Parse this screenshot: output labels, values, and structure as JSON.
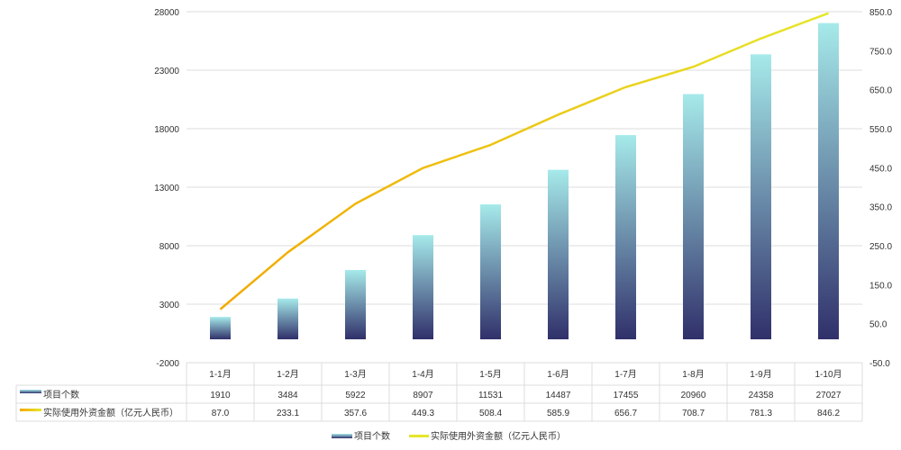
{
  "chart_data": {
    "type": "bar+line",
    "categories": [
      "1-1月",
      "1-2月",
      "1-3月",
      "1-4月",
      "1-5月",
      "1-6月",
      "1-7月",
      "1-8月",
      "1-9月",
      "1-10月"
    ],
    "series": [
      {
        "name": "项目个数",
        "type": "bar",
        "axis": "left",
        "values": [
          1910,
          3484,
          5922,
          8907,
          11531,
          14487,
          17455,
          20960,
          24358,
          27027
        ],
        "display": [
          "1910",
          "3484",
          "5922",
          "8907",
          "11531",
          "14487",
          "17455",
          "20960",
          "24358",
          "27027"
        ],
        "color_top": "#a6eaea",
        "color_bottom": "#30306a"
      },
      {
        "name": "实际使用外资金额（亿元人民币）",
        "type": "line",
        "axis": "right",
        "values": [
          87.0,
          233.1,
          357.6,
          449.3,
          508.4,
          585.9,
          656.7,
          708.7,
          781.3,
          846.2
        ],
        "display": [
          "87.0",
          "233.1",
          "357.6",
          "449.3",
          "508.4",
          "585.9",
          "656.7",
          "708.7",
          "781.3",
          "846.2"
        ],
        "color_start": "#f2a900",
        "color_end": "#e6e62a"
      }
    ],
    "y_left": {
      "range": [
        -2000,
        28000
      ],
      "ticks": [
        "-2000",
        "3000",
        "8000",
        "13000",
        "18000",
        "23000",
        "28000"
      ]
    },
    "y_right": {
      "range": [
        -50,
        850
      ],
      "ticks": [
        "-50.0",
        "50.0",
        "150.0",
        "250.0",
        "350.0",
        "450.0",
        "550.0",
        "650.0",
        "750.0",
        "850.0"
      ]
    },
    "grid": true,
    "legend": "bottom",
    "data_table": true
  }
}
